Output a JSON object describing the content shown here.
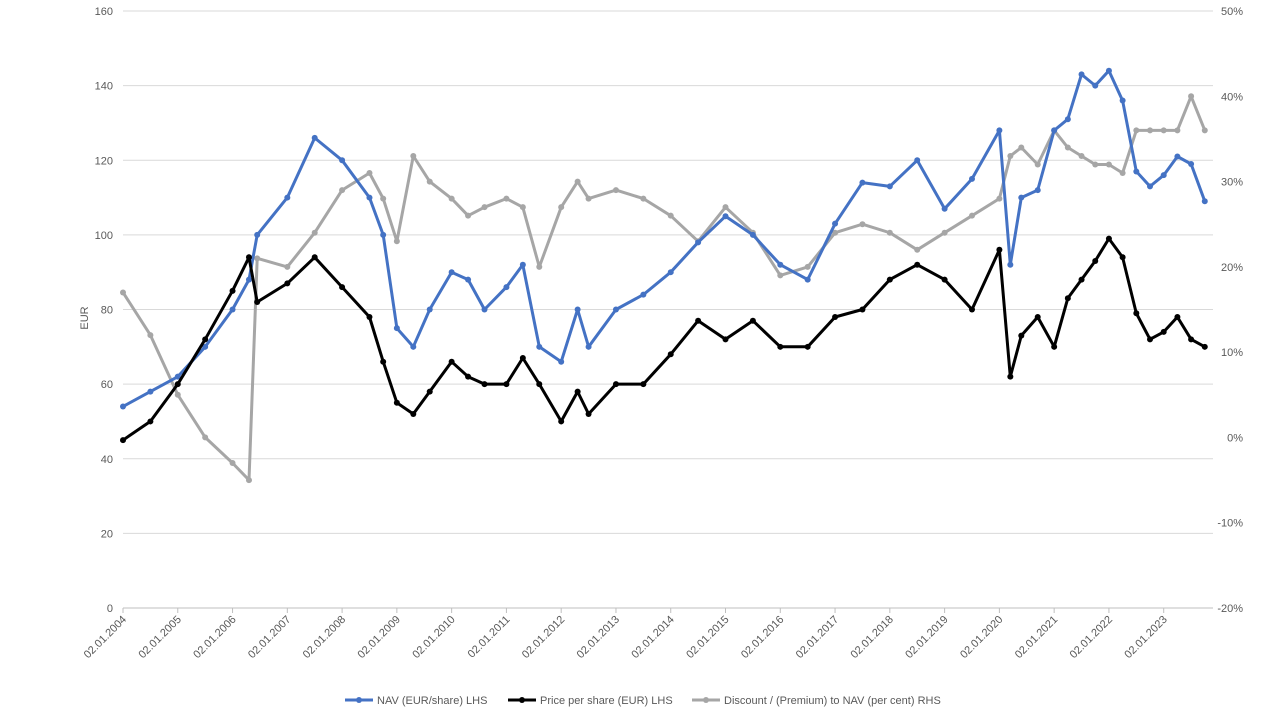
{
  "chart_data": {
    "type": "line",
    "title": "",
    "ylabel": "EUR",
    "ylim": [
      0,
      160
    ],
    "y_ticks": [
      "0",
      "20",
      "40",
      "60",
      "80",
      "100",
      "120",
      "140",
      "160"
    ],
    "y2lim": [
      -0.2,
      0.5
    ],
    "y2_ticks": [
      "-20%",
      "-10%",
      "0%",
      "10%",
      "20%",
      "30%",
      "40%",
      "50%"
    ],
    "x_tick_labels": [
      "02.01.2004",
      "02.01.2005",
      "02.01.2006",
      "02.01.2007",
      "02.01.2008",
      "02.01.2009",
      "02.01.2010",
      "02.01.2011",
      "02.01.2012",
      "02.01.2013",
      "02.01.2014",
      "02.01.2015",
      "02.01.2016",
      "02.01.2017",
      "02.01.2018",
      "02.01.2019",
      "02.01.2020",
      "02.01.2021",
      "02.01.2022",
      "02.01.2023"
    ],
    "x": [
      2004.0,
      2004.5,
      2005.0,
      2005.5,
      2006.0,
      2006.3,
      2006.45,
      2007.0,
      2007.5,
      2008.0,
      2008.5,
      2008.75,
      2009.0,
      2009.3,
      2009.6,
      2010.0,
      2010.3,
      2010.6,
      2011.0,
      2011.3,
      2011.6,
      2012.0,
      2012.3,
      2012.5,
      2013.0,
      2013.5,
      2014.0,
      2014.5,
      2015.0,
      2015.5,
      2016.0,
      2016.5,
      2017.0,
      2017.5,
      2018.0,
      2018.5,
      2019.0,
      2019.5,
      2020.0,
      2020.2,
      2020.4,
      2020.7,
      2021.0,
      2021.25,
      2021.5,
      2021.75,
      2022.0,
      2022.25,
      2022.5,
      2022.75,
      2023.0,
      2023.25,
      2023.5,
      2023.75
    ],
    "series": [
      {
        "name": "NAV (EUR/share) LHS",
        "axis": "left",
        "color": "#4472c4",
        "values": [
          54,
          58,
          62,
          70,
          80,
          88,
          100,
          110,
          126,
          120,
          110,
          100,
          75,
          70,
          80,
          90,
          88,
          80,
          86,
          92,
          70,
          66,
          80,
          70,
          80,
          84,
          90,
          98,
          105,
          100,
          92,
          88,
          103,
          114,
          113,
          120,
          107,
          115,
          128,
          92,
          110,
          112,
          128,
          131,
          143,
          140,
          144,
          136,
          117,
          113,
          116,
          121,
          119,
          109
        ]
      },
      {
        "name": "Price per share (EUR) LHS",
        "axis": "left",
        "color": "#000000",
        "values": [
          45,
          50,
          60,
          72,
          85,
          94,
          82,
          87,
          94,
          86,
          78,
          66,
          55,
          52,
          58,
          66,
          62,
          60,
          60,
          67,
          60,
          50,
          58,
          52,
          60,
          60,
          68,
          77,
          72,
          77,
          70,
          70,
          78,
          80,
          88,
          92,
          88,
          80,
          96,
          62,
          73,
          78,
          70,
          83,
          88,
          93,
          99,
          94,
          79,
          72,
          74,
          78,
          72,
          70
        ]
      },
      {
        "name": "Discount / (Premium) to NAV (per cent) RHS",
        "axis": "right",
        "color": "#a6a6a6",
        "values": [
          0.17,
          0.12,
          0.05,
          0.0,
          -0.03,
          -0.05,
          0.21,
          0.2,
          0.24,
          0.29,
          0.31,
          0.28,
          0.23,
          0.33,
          0.3,
          0.28,
          0.26,
          0.27,
          0.28,
          0.27,
          0.2,
          0.27,
          0.3,
          0.28,
          0.29,
          0.28,
          0.26,
          0.23,
          0.27,
          0.24,
          0.19,
          0.2,
          0.24,
          0.25,
          0.24,
          0.22,
          0.24,
          0.26,
          0.28,
          0.33,
          0.34,
          0.32,
          0.36,
          0.34,
          0.33,
          0.32,
          0.32,
          0.31,
          0.36,
          0.36,
          0.36,
          0.36,
          0.4,
          0.36
        ]
      }
    ],
    "legend_position": "bottom-center",
    "grid": "horizontal"
  }
}
